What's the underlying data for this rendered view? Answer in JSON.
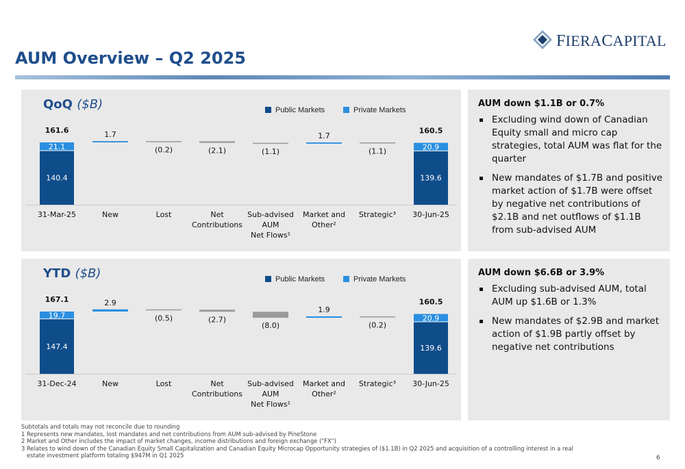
{
  "page": {
    "title": "AUM Overview – Q2 2025",
    "page_number": "6",
    "logo": {
      "part1": "F",
      "part2": "IERA",
      "part3": "C",
      "part4": "APITAL"
    }
  },
  "colors": {
    "public_markets": "#0f4c8a",
    "private_markets": "#2a8fe0",
    "neutral_bar": "#9a9a9a",
    "heading": "#1f4e8c"
  },
  "qoq_panel": {
    "heading": "AUM down $1.1B or 0.7%",
    "bullets": [
      "Excluding wind down of Canadian Equity small and micro cap strategies, total AUM was flat for the quarter",
      "New mandates of $1.7B and positive market action of $1.7B were offset by negative net contributions of $2.1B and net outflows of $1.1B from sub-advised AUM"
    ]
  },
  "ytd_panel": {
    "heading": "AUM down $6.6B or 3.9%",
    "bullets": [
      "Excluding sub-advised AUM, total AUM up $1.6B or 1.3%",
      "New mandates of $2.9B and market action of $1.9B partly offset by negative net contributions"
    ]
  },
  "footnotes": [
    "Subtotals and totals may not reconcile due to rounding",
    "1 Represents new mandates, lost mandates and net contributions from AUM sub-advised by PineStone",
    "2 Market and Other includes the impact of market changes, income distributions and foreign exchange (\"FX\")",
    "3 Relates to wind down of the Canadian Equity Small Capitalization and Canadian Equity Microcap Opportunity strategies of ($1.1B) in Q2 2025 and acquisition of a controlling interest in a real",
    "   estate investment platform totaling $947M in Q1 2025"
  ],
  "chart_data": [
    {
      "type": "bar",
      "title": "QoQ",
      "subtitle": "($B)",
      "legend": [
        "Public Markets",
        "Private Markets"
      ],
      "legend_position": "top",
      "categories": [
        "31-Mar-25",
        "New",
        "Lost",
        "Net Contributions",
        "Sub-advised AUM Net Flows¹",
        "Market and Other²",
        "Strategic³",
        "30-Jun-25"
      ],
      "category_lines": [
        [
          "31-Mar-25"
        ],
        [
          "New"
        ],
        [
          "Lost"
        ],
        [
          "Net",
          "Contributions"
        ],
        [
          "Sub-advised",
          "AUM",
          "Net Flows¹"
        ],
        [
          "Market and",
          "Other²"
        ],
        [
          "Strategic³"
        ],
        [
          "30-Jun-25"
        ]
      ],
      "totals": [
        {
          "index": 0,
          "public": 140.4,
          "private": 21.1,
          "total": 161.6,
          "public_label": "140.4",
          "private_label": "21.1",
          "total_label": "161.6"
        },
        {
          "index": 7,
          "public": 139.6,
          "private": 20.9,
          "total": 160.5,
          "public_label": "139.6",
          "private_label": "20.9",
          "total_label": "160.5"
        }
      ],
      "changes": [
        {
          "index": 1,
          "value": 1.7,
          "label": "1.7"
        },
        {
          "index": 2,
          "value": -0.2,
          "label": "(0.2)"
        },
        {
          "index": 3,
          "value": -2.1,
          "label": "(2.1)"
        },
        {
          "index": 4,
          "value": -1.1,
          "label": "(1.1)"
        },
        {
          "index": 5,
          "value": 1.7,
          "label": "1.7"
        },
        {
          "index": 6,
          "value": -1.1,
          "label": "(1.1)"
        }
      ]
    },
    {
      "type": "bar",
      "title": "YTD",
      "subtitle": "($B)",
      "legend": [
        "Public Markets",
        "Private Markets"
      ],
      "legend_position": "top",
      "categories": [
        "31-Dec-24",
        "New",
        "Lost",
        "Net Contributions",
        "Sub-advised AUM Net Flows¹",
        "Market and Other²",
        "Strategic³",
        "30-Jun-25"
      ],
      "category_lines": [
        [
          "31-Dec-24"
        ],
        [
          "New"
        ],
        [
          "Lost"
        ],
        [
          "Net",
          "Contributions"
        ],
        [
          "Sub-advised",
          "AUM",
          "Net Flows¹"
        ],
        [
          "Market and",
          "Other²"
        ],
        [
          "Strategic³"
        ],
        [
          "30-Jun-25"
        ]
      ],
      "totals": [
        {
          "index": 0,
          "public": 147.4,
          "private": 19.7,
          "total": 167.1,
          "public_label": "147.4",
          "private_label": "19.7",
          "total_label": "167.1"
        },
        {
          "index": 7,
          "public": 139.6,
          "private": 20.9,
          "total": 160.5,
          "public_label": "139.6",
          "private_label": "20.9",
          "total_label": "160.5"
        }
      ],
      "changes": [
        {
          "index": 1,
          "value": 2.9,
          "label": "2.9"
        },
        {
          "index": 2,
          "value": -0.5,
          "label": "(0.5)"
        },
        {
          "index": 3,
          "value": -2.7,
          "label": "(2.7)"
        },
        {
          "index": 4,
          "value": -8.0,
          "label": "(8.0)"
        },
        {
          "index": 5,
          "value": 1.9,
          "label": "1.9"
        },
        {
          "index": 6,
          "value": -0.2,
          "label": "(0.2)"
        }
      ]
    }
  ]
}
